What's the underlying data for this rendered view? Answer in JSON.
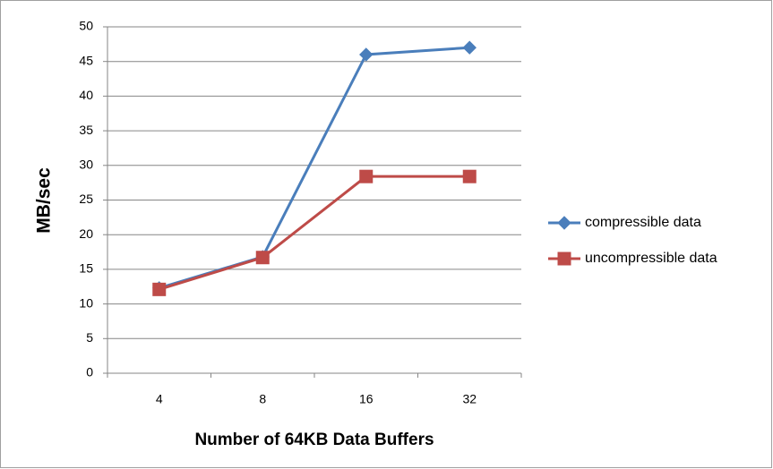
{
  "chart_data": {
    "type": "line",
    "xlabel": "Number of 64KB Data Buffers",
    "ylabel": "MB/sec",
    "categories": [
      "4",
      "8",
      "16",
      "32"
    ],
    "series": [
      {
        "name": "compressible data",
        "color": "#4a7ebb",
        "marker": "diamond",
        "values": [
          12.3,
          16.8,
          46,
          47
        ]
      },
      {
        "name": "uncompressible data",
        "color": "#be4b48",
        "marker": "square",
        "values": [
          12.1,
          16.7,
          28.4,
          28.4
        ]
      }
    ],
    "ylim": [
      0,
      50
    ],
    "yticks": [
      0,
      5,
      10,
      15,
      20,
      25,
      30,
      35,
      40,
      45,
      50
    ],
    "grid": true,
    "legend": "right"
  }
}
